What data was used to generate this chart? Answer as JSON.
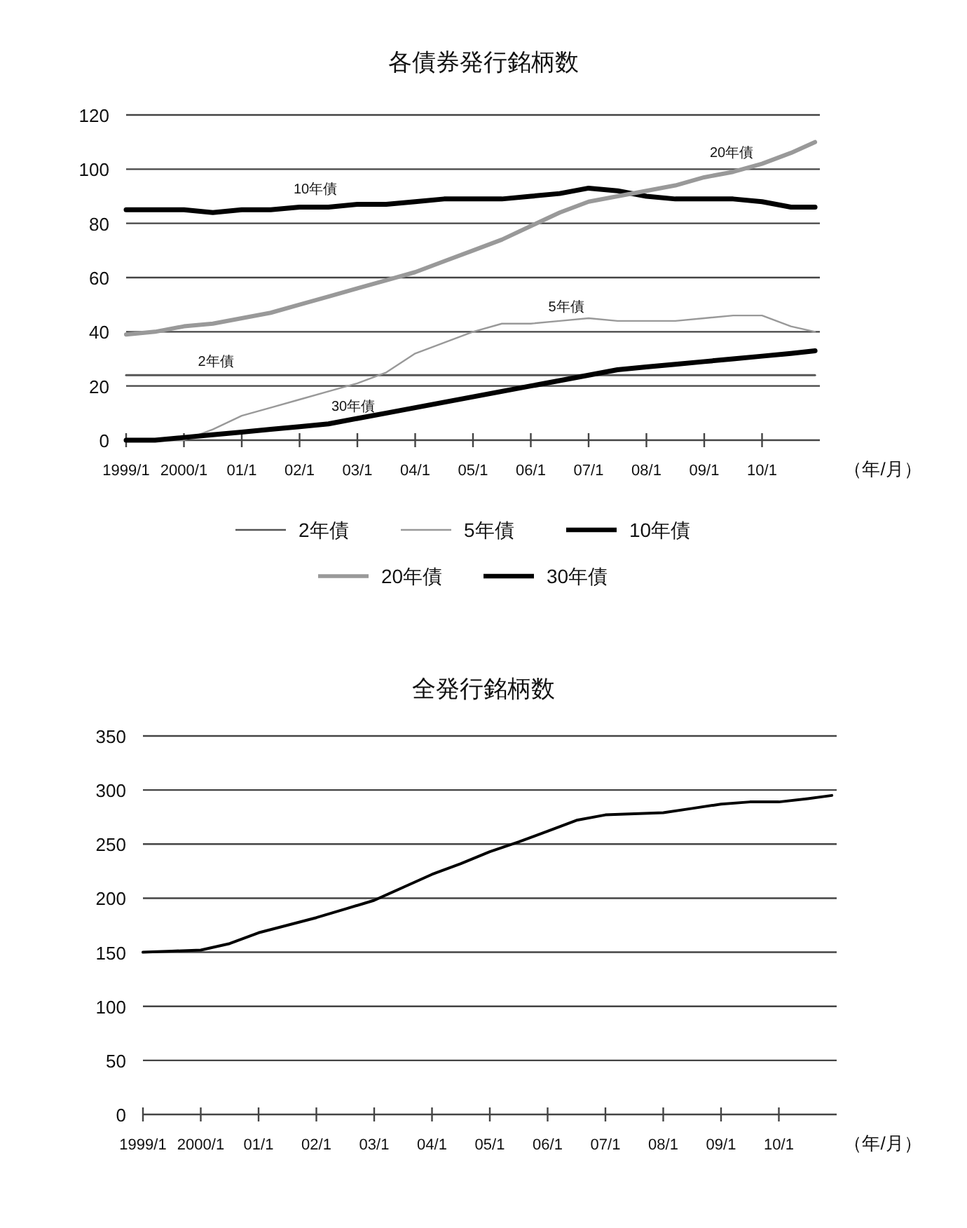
{
  "chart_data": [
    {
      "type": "line",
      "title": "各債券発行銘柄数",
      "xlabel": "（年/月）",
      "x": [
        "1999-01",
        "1999-07",
        "2000-01",
        "2000-07",
        "2001-01",
        "2001-07",
        "2002-01",
        "2002-07",
        "2003-01",
        "2003-07",
        "2004-01",
        "2004-07",
        "2005-01",
        "2005-07",
        "2006-01",
        "2006-07",
        "2007-01",
        "2007-07",
        "2008-01",
        "2008-07",
        "2009-01",
        "2009-07",
        "2010-01",
        "2010-07",
        "2010-12"
      ],
      "series": [
        {
          "name": "2年債",
          "color": "#555555",
          "values": [
            24,
            24,
            24,
            24,
            24,
            24,
            24,
            24,
            24,
            24,
            24,
            24,
            24,
            24,
            24,
            24,
            24,
            24,
            24,
            24,
            24,
            24,
            24,
            24,
            24
          ]
        },
        {
          "name": "5年債",
          "color": "#999999",
          "values": [
            0,
            0,
            0,
            4,
            9,
            12,
            15,
            18,
            21,
            25,
            32,
            36,
            40,
            43,
            43,
            44,
            45,
            44,
            44,
            44,
            45,
            46,
            46,
            42,
            40
          ]
        },
        {
          "name": "10年債",
          "color": "#000000",
          "values": [
            85,
            85,
            85,
            84,
            85,
            85,
            86,
            86,
            87,
            87,
            88,
            89,
            89,
            89,
            90,
            91,
            93,
            92,
            90,
            89,
            89,
            89,
            88,
            86,
            86
          ]
        },
        {
          "name": "20年債",
          "color": "#999999",
          "values": [
            39,
            40,
            42,
            43,
            45,
            47,
            50,
            53,
            56,
            59,
            62,
            66,
            70,
            74,
            79,
            84,
            88,
            90,
            92,
            94,
            97,
            99,
            102,
            106,
            110
          ]
        },
        {
          "name": "30年債",
          "color": "#000000",
          "values": [
            0,
            0,
            1,
            2,
            3,
            4,
            5,
            6,
            8,
            10,
            12,
            14,
            16,
            18,
            20,
            22,
            24,
            26,
            27,
            28,
            29,
            30,
            31,
            32,
            33
          ]
        }
      ],
      "xlim": [
        "1999-01",
        "2011-01"
      ],
      "xticks": [
        {
          "value": "1999-01",
          "label": "1999/1"
        },
        {
          "value": "2000-01",
          "label": "2000/1"
        },
        {
          "value": "2001-01",
          "label": "01/1"
        },
        {
          "value": "2002-01",
          "label": "02/1"
        },
        {
          "value": "2003-01",
          "label": "03/1"
        },
        {
          "value": "2004-01",
          "label": "04/1"
        },
        {
          "value": "2005-01",
          "label": "05/1"
        },
        {
          "value": "2006-01",
          "label": "06/1"
        },
        {
          "value": "2007-01",
          "label": "07/1"
        },
        {
          "value": "2008-01",
          "label": "08/1"
        },
        {
          "value": "2009-01",
          "label": "09/1"
        },
        {
          "value": "2010-01",
          "label": "10/1"
        }
      ],
      "ylim": [
        0,
        120
      ],
      "yticks": [
        0,
        20,
        40,
        60,
        80,
        100,
        120
      ],
      "grid": "y",
      "legend": "bottom",
      "annotations": [
        "10年債",
        "20年債",
        "5年債",
        "2年債",
        "30年債"
      ]
    },
    {
      "type": "line",
      "title": "全発行銘柄数",
      "xlabel": "（年/月）",
      "x": [
        "1999-01",
        "1999-07",
        "2000-01",
        "2000-07",
        "2001-01",
        "2001-07",
        "2002-01",
        "2002-07",
        "2003-01",
        "2003-07",
        "2004-01",
        "2004-07",
        "2005-01",
        "2005-07",
        "2006-01",
        "2006-07",
        "2007-01",
        "2007-07",
        "2008-01",
        "2008-07",
        "2009-01",
        "2009-07",
        "2010-01",
        "2010-07",
        "2010-12"
      ],
      "series": [
        {
          "color": "#000000",
          "values": [
            150,
            151,
            152,
            158,
            168,
            175,
            182,
            190,
            198,
            210,
            222,
            232,
            243,
            252,
            262,
            272,
            277,
            278,
            279,
            283,
            287,
            289,
            289,
            292,
            295
          ]
        }
      ],
      "xlim": [
        "1999-01",
        "2011-01"
      ],
      "xticks": [
        {
          "value": "1999-01",
          "label": "1999/1"
        },
        {
          "value": "2000-01",
          "label": "2000/1"
        },
        {
          "value": "2001-01",
          "label": "01/1"
        },
        {
          "value": "2002-01",
          "label": "02/1"
        },
        {
          "value": "2003-01",
          "label": "03/1"
        },
        {
          "value": "2004-01",
          "label": "04/1"
        },
        {
          "value": "2005-01",
          "label": "05/1"
        },
        {
          "value": "2006-01",
          "label": "06/1"
        },
        {
          "value": "2007-01",
          "label": "07/1"
        },
        {
          "value": "2008-01",
          "label": "08/1"
        },
        {
          "value": "2009-01",
          "label": "09/1"
        },
        {
          "value": "2010-01",
          "label": "10/1"
        }
      ],
      "ylim": [
        0,
        350
      ],
      "yticks": [
        0,
        50,
        100,
        150,
        200,
        250,
        300,
        350
      ],
      "grid": "y"
    }
  ]
}
